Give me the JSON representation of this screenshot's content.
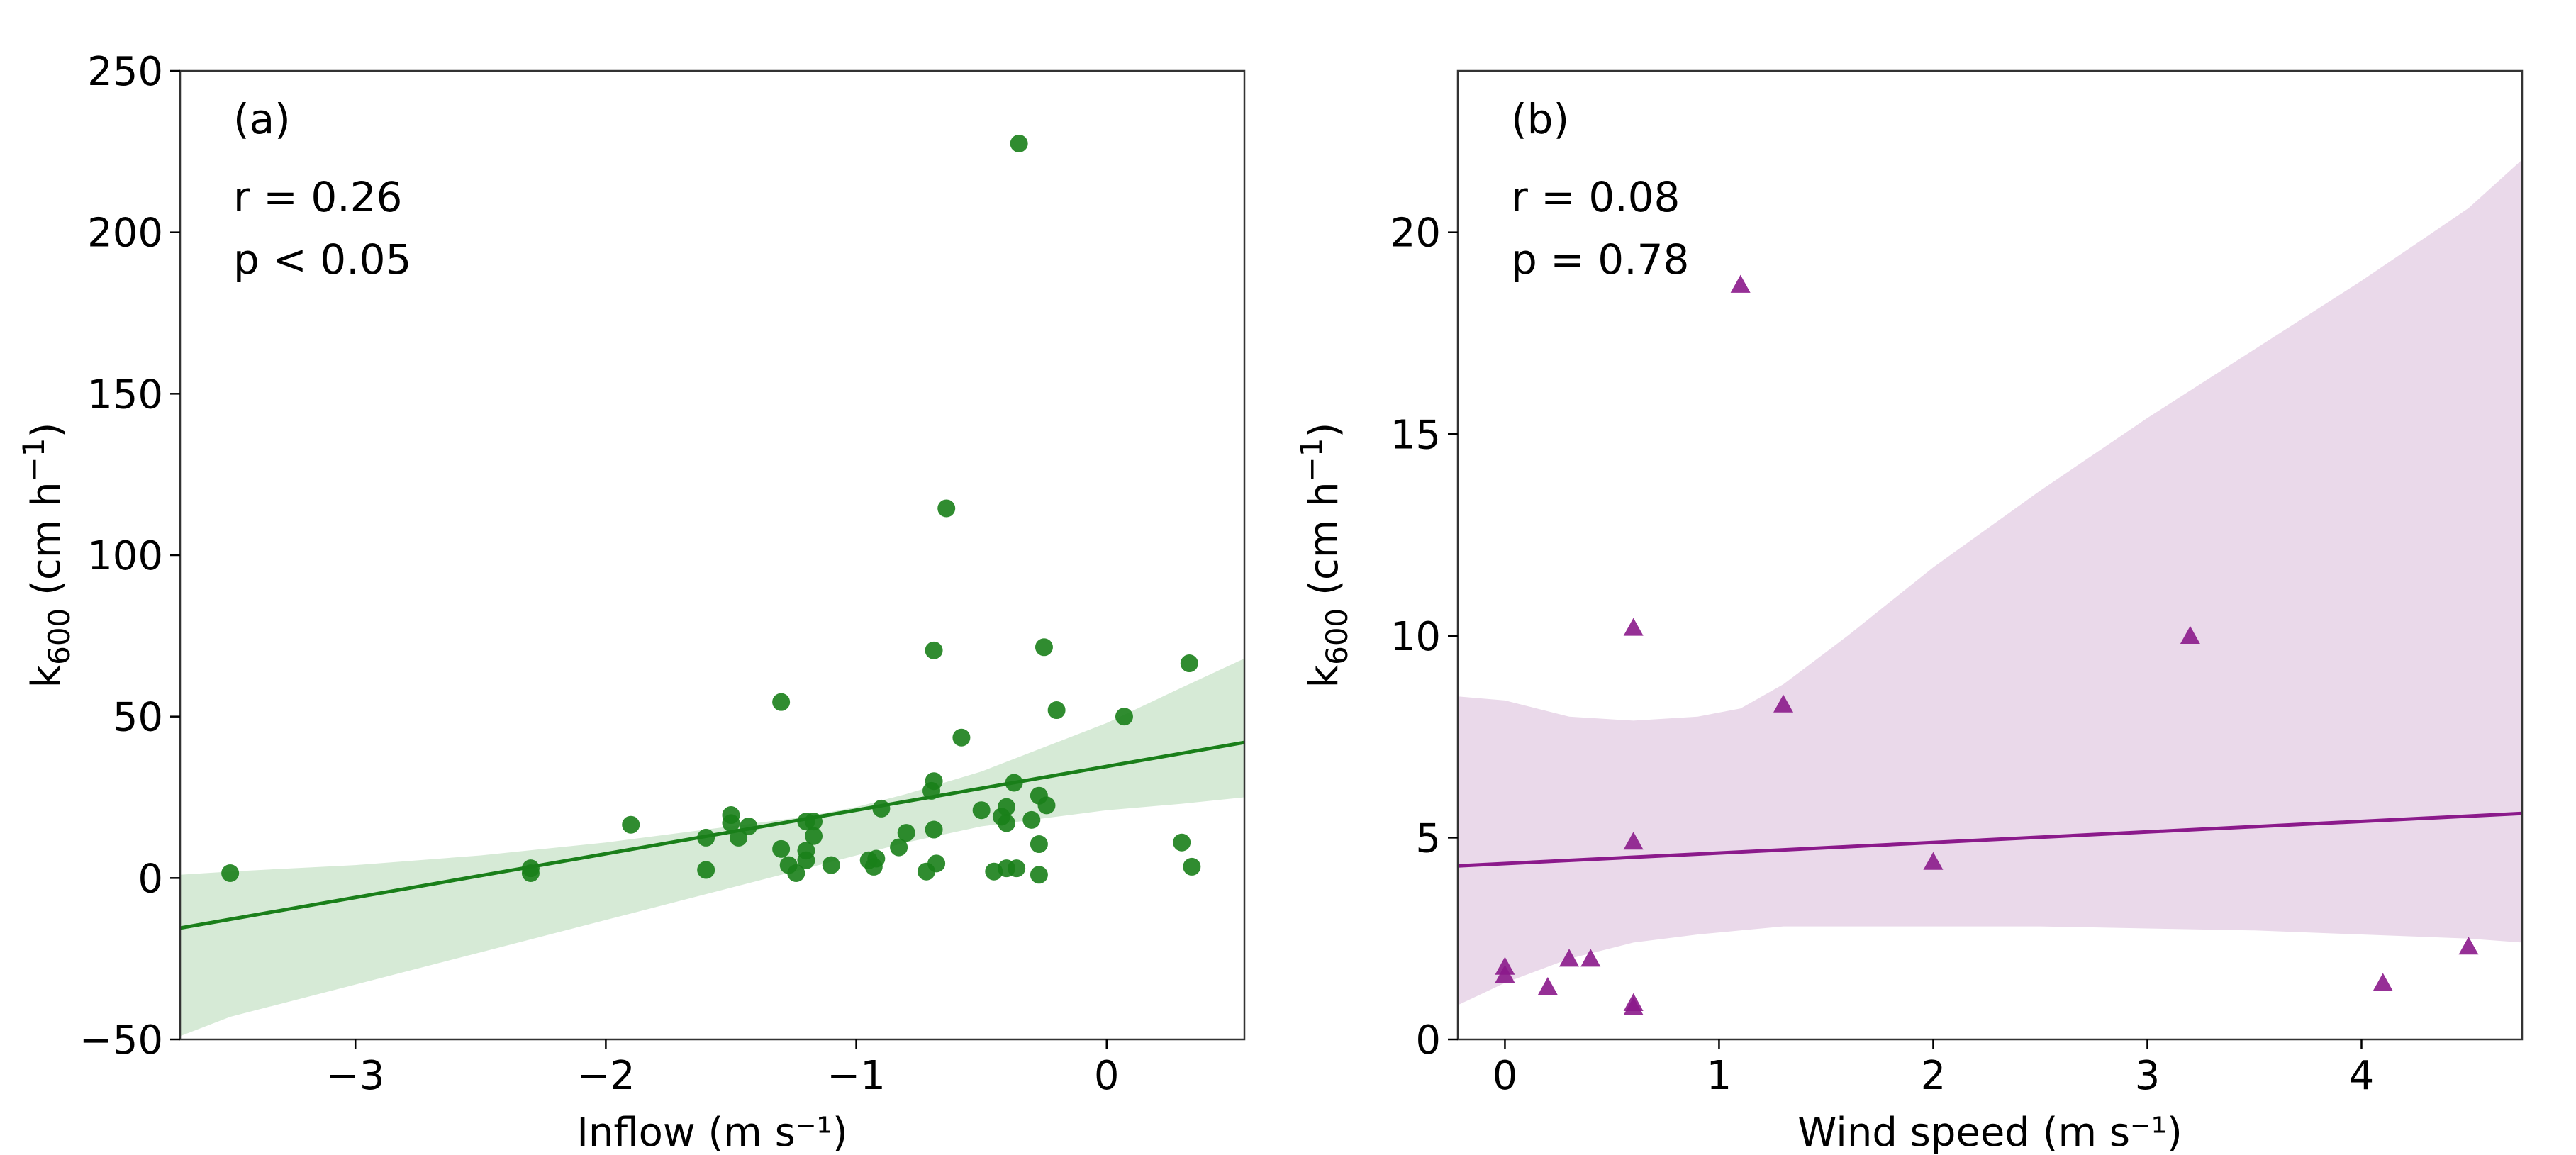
{
  "chart_data": [
    {
      "type": "scatter",
      "panel_label": "(a)",
      "stats": [
        "r = 0.26",
        "p < 0.05"
      ],
      "xlabel": "Inflow (m s⁻¹)",
      "ylabel_main": "k",
      "ylabel_sub": "600",
      "ylabel_rest": " (cm h",
      "ylabel_sup": "−1",
      "ylabel_end": ")",
      "xlim": [
        -3.7,
        0.55
      ],
      "ylim": [
        -50,
        250
      ],
      "xticks": [
        -3,
        -2,
        -1,
        0
      ],
      "xtick_labels": [
        "−3",
        "−2",
        "−1",
        "0"
      ],
      "yticks": [
        -50,
        0,
        50,
        100,
        150,
        200,
        250
      ],
      "ytick_labels": [
        "−50",
        "0",
        "50",
        "100",
        "150",
        "200",
        "250"
      ],
      "marker": "circle",
      "color": "#1a7f1a",
      "band_color": "#d6ead6",
      "fit": {
        "x": [
          -3.7,
          0.55
        ],
        "y": [
          -15.5,
          42
        ]
      },
      "band": {
        "x": [
          -3.7,
          -3.5,
          -3,
          -2.5,
          -2,
          -1.5,
          -1.2,
          -1,
          -0.8,
          -0.5,
          -0.3,
          0,
          0.3,
          0.55
        ],
        "upper": [
          1,
          2,
          4,
          7,
          11,
          16,
          19,
          22,
          26,
          33,
          39,
          48,
          59,
          68
        ],
        "lower": [
          -49,
          -43,
          -33,
          -23,
          -13,
          -3,
          3,
          7,
          11,
          16,
          18,
          21,
          23,
          25
        ]
      },
      "points": [
        [
          -3.5,
          1.5
        ],
        [
          -2.3,
          3
        ],
        [
          -2.3,
          1.5
        ],
        [
          -1.9,
          16.5
        ],
        [
          -1.6,
          12.5
        ],
        [
          -1.6,
          2.5
        ],
        [
          -1.5,
          17
        ],
        [
          -1.5,
          19.5
        ],
        [
          -1.47,
          12.5
        ],
        [
          -1.43,
          16
        ],
        [
          -1.3,
          54.5
        ],
        [
          -1.3,
          9
        ],
        [
          -1.27,
          4
        ],
        [
          -1.24,
          1.5
        ],
        [
          -1.2,
          17.5
        ],
        [
          -1.2,
          5.5
        ],
        [
          -1.2,
          8.5
        ],
        [
          -1.17,
          17.5
        ],
        [
          -1.17,
          13
        ],
        [
          -1.1,
          4
        ],
        [
          -0.95,
          5.5
        ],
        [
          -0.93,
          3.5
        ],
        [
          -0.92,
          6
        ],
        [
          -0.9,
          21.5
        ],
        [
          -0.83,
          9.5
        ],
        [
          -0.8,
          14
        ],
        [
          -0.72,
          2
        ],
        [
          -0.7,
          27
        ],
        [
          -0.69,
          30
        ],
        [
          -0.69,
          70.5
        ],
        [
          -0.69,
          15
        ],
        [
          -0.68,
          4.5
        ],
        [
          -0.64,
          114.5
        ],
        [
          -0.58,
          43.5
        ],
        [
          -0.5,
          21
        ],
        [
          -0.45,
          2
        ],
        [
          -0.42,
          19
        ],
        [
          -0.4,
          22
        ],
        [
          -0.4,
          17
        ],
        [
          -0.4,
          3
        ],
        [
          -0.37,
          29.5
        ],
        [
          -0.36,
          3
        ],
        [
          -0.35,
          227.5
        ],
        [
          -0.3,
          18
        ],
        [
          -0.27,
          25.5
        ],
        [
          -0.27,
          10.5
        ],
        [
          -0.27,
          1
        ],
        [
          -0.25,
          71.5
        ],
        [
          -0.24,
          22.5
        ],
        [
          -0.2,
          52
        ],
        [
          0.07,
          50
        ],
        [
          0.3,
          11
        ],
        [
          0.33,
          66.5
        ],
        [
          0.34,
          3.5
        ]
      ]
    },
    {
      "type": "scatter",
      "panel_label": "(b)",
      "stats": [
        "r = 0.08",
        "p = 0.78"
      ],
      "xlabel": "Wind speed (m s⁻¹)",
      "ylabel_main": "k",
      "ylabel_sub": "600",
      "ylabel_rest": " (cm h",
      "ylabel_sup": "−1",
      "ylabel_end": ")",
      "xlim": [
        -0.22,
        4.75
      ],
      "ylim": [
        0,
        24
      ],
      "xticks": [
        0,
        1,
        2,
        3,
        4
      ],
      "xtick_labels": [
        "0",
        "1",
        "2",
        "3",
        "4"
      ],
      "yticks": [
        0,
        5,
        10,
        15,
        20
      ],
      "ytick_labels": [
        "0",
        "5",
        "10",
        "15",
        "20"
      ],
      "marker": "triangle",
      "color": "#8b1a8b",
      "band_color": "#ead9ea",
      "fit": {
        "x": [
          -0.22,
          4.75
        ],
        "y": [
          4.3,
          5.6
        ]
      },
      "band": {
        "x": [
          -0.22,
          0,
          0.3,
          0.6,
          0.9,
          1.1,
          1.3,
          1.6,
          2,
          2.5,
          3,
          3.5,
          4,
          4.5,
          4.75
        ],
        "upper": [
          8.5,
          8.4,
          8.0,
          7.9,
          8.0,
          8.2,
          8.8,
          10.0,
          11.7,
          13.6,
          15.4,
          17.1,
          18.8,
          20.6,
          21.8
        ],
        "lower": [
          0.85,
          1.4,
          2.0,
          2.4,
          2.6,
          2.7,
          2.8,
          2.8,
          2.8,
          2.8,
          2.75,
          2.7,
          2.6,
          2.5,
          2.4
        ]
      },
      "points": [
        [
          0,
          1.8
        ],
        [
          0,
          1.6
        ],
        [
          0.2,
          1.3
        ],
        [
          0.3,
          2.0
        ],
        [
          0.4,
          2.0
        ],
        [
          0.6,
          10.2
        ],
        [
          0.6,
          4.9
        ],
        [
          0.6,
          0.9
        ],
        [
          0.6,
          0.8
        ],
        [
          1.1,
          18.7
        ],
        [
          1.3,
          8.3
        ],
        [
          2,
          4.4
        ],
        [
          3.2,
          10
        ],
        [
          4.1,
          1.4
        ],
        [
          4.5,
          2.3
        ]
      ]
    }
  ]
}
